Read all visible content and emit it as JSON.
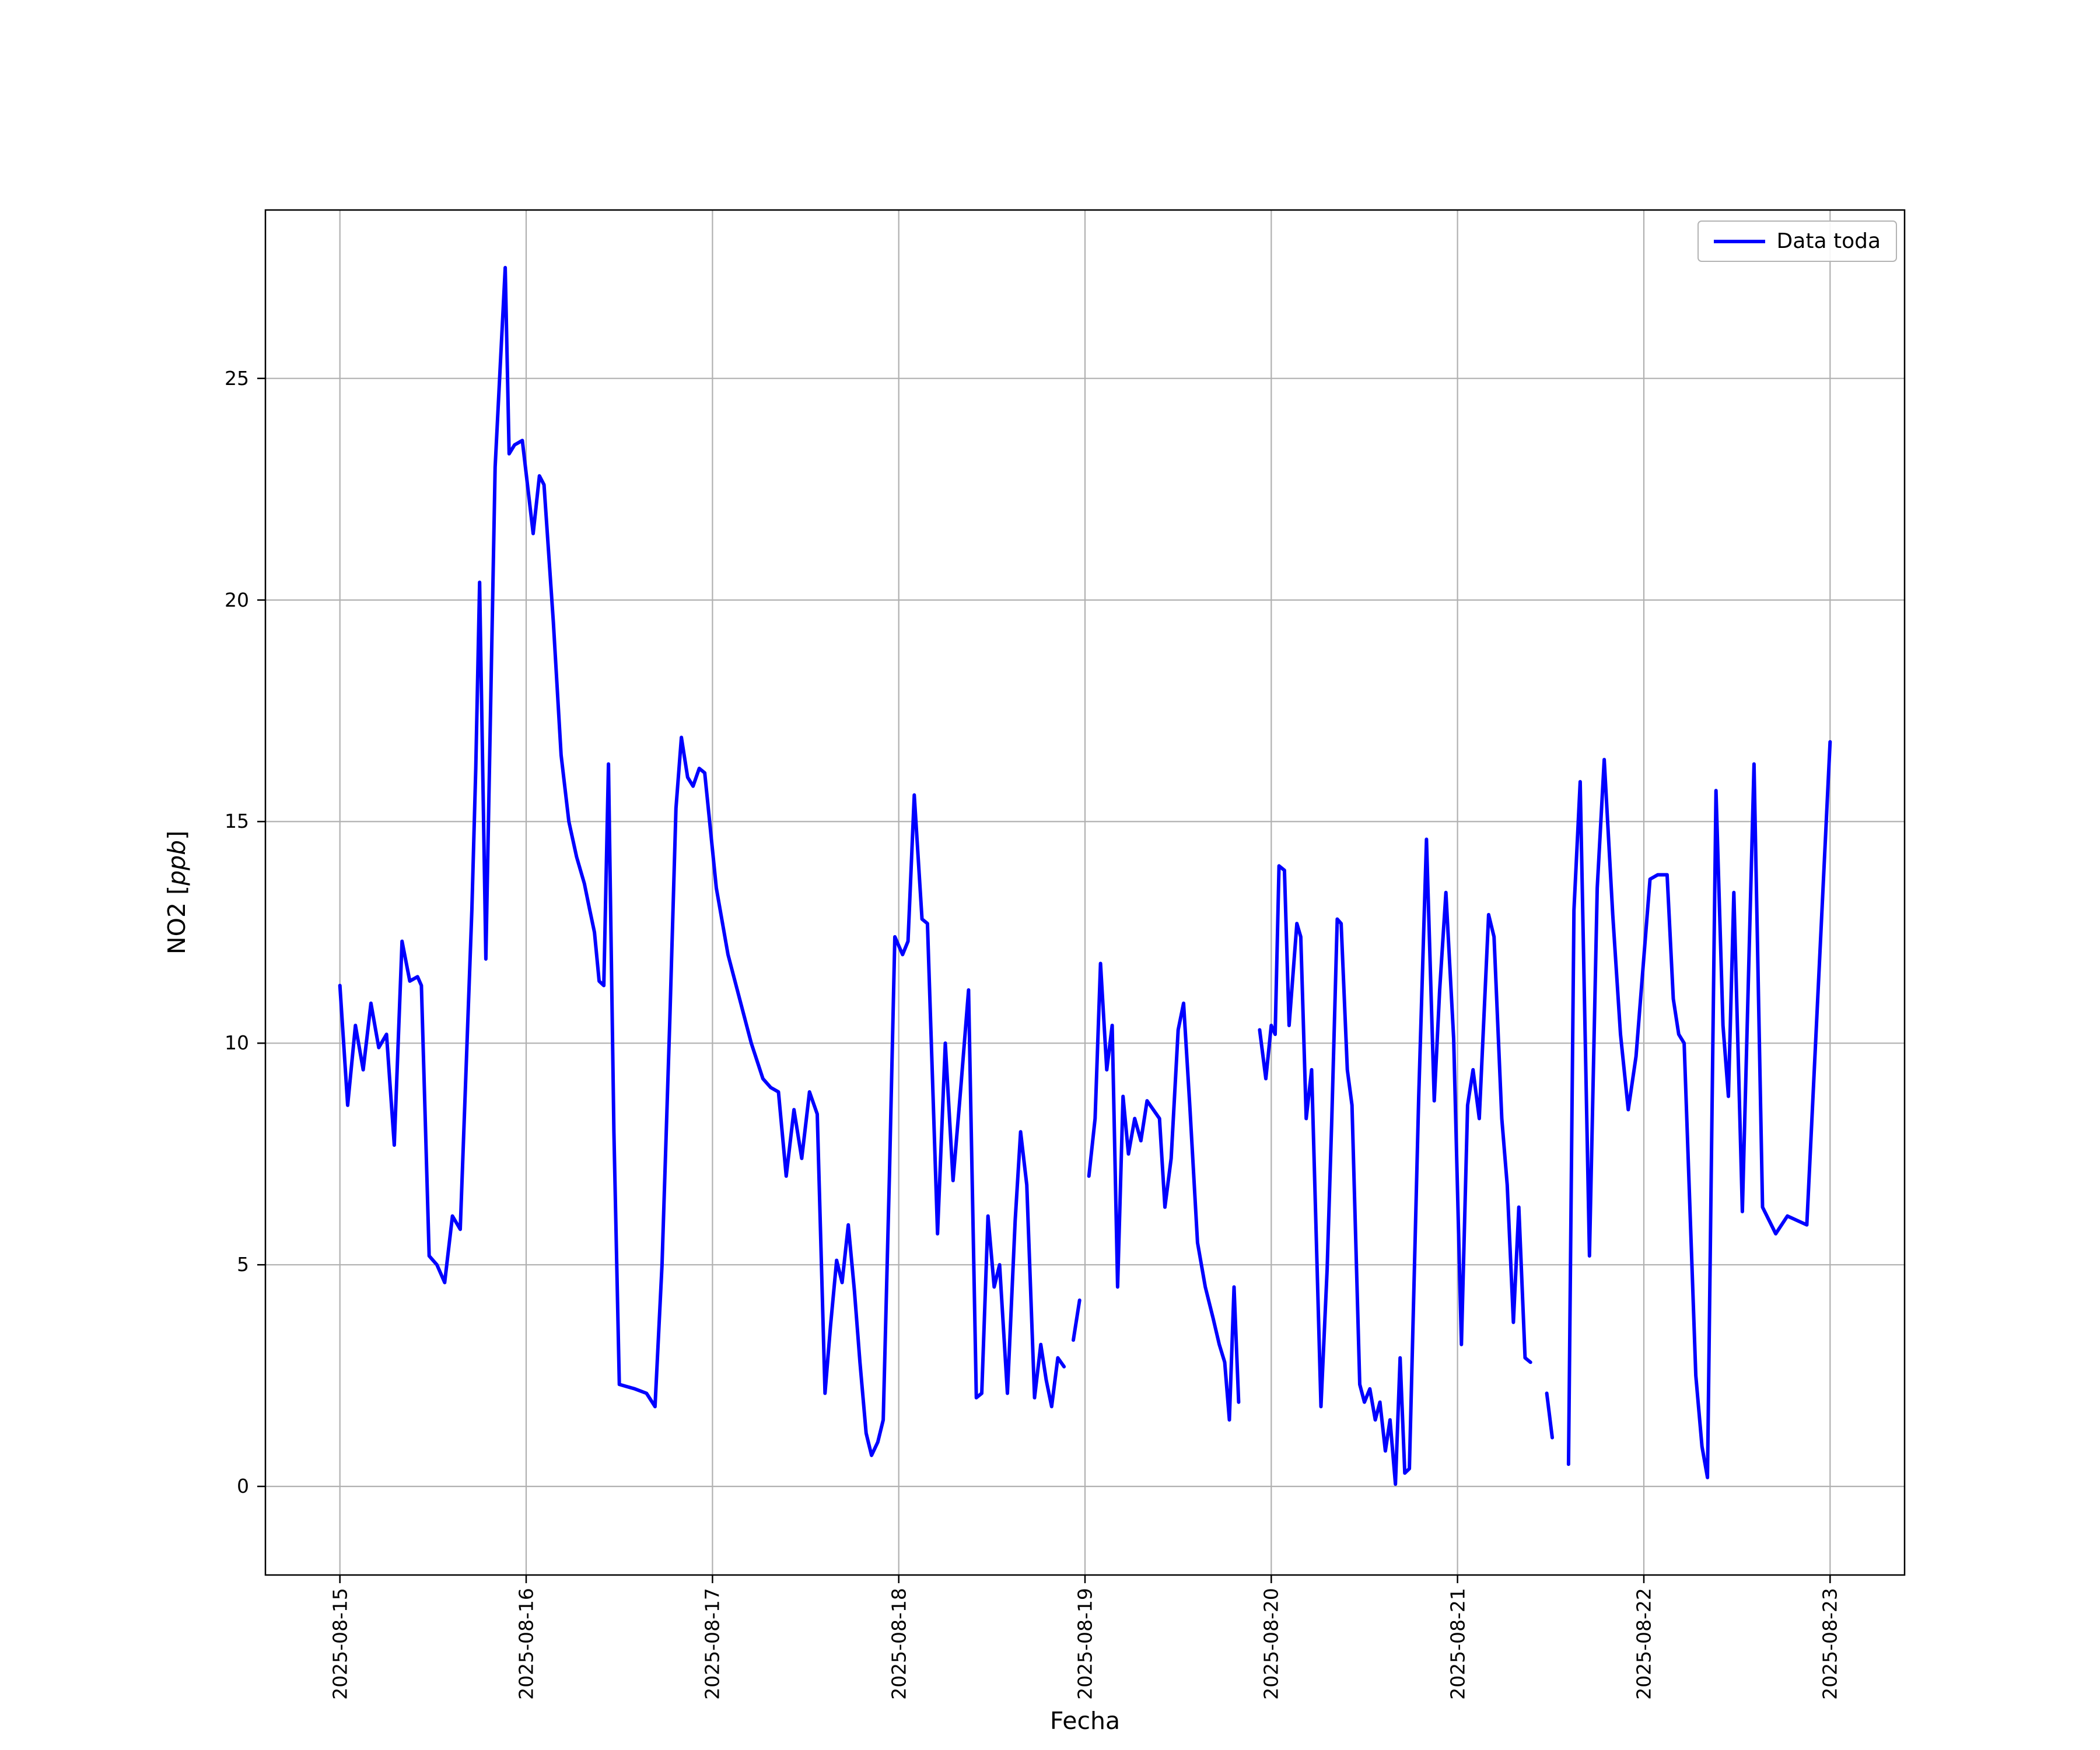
{
  "chart_data": {
    "type": "line",
    "xlabel": "Fecha",
    "ylabel": "NO2 [ppb]",
    "ylabel_parts": {
      "prefix": "NO2 [",
      "italic": "ppb",
      "suffix": "]"
    },
    "x_unit": "hours since first x tick (2025-08-15 00:00)",
    "xlim": [
      -9.6,
      201.6
    ],
    "ylim": [
      -2.0,
      28.8
    ],
    "grid": true,
    "yticks": [
      0,
      5,
      10,
      15,
      20,
      25
    ],
    "xtick_hours": [
      0,
      24,
      48,
      72,
      96,
      120,
      144,
      168,
      192
    ],
    "xtick_labels": [
      "2025-08-15",
      "2025-08-16",
      "2025-08-17",
      "2025-08-18",
      "2025-08-19",
      "2025-08-20",
      "2025-08-21",
      "2025-08-22",
      "2025-08-23"
    ],
    "legend": {
      "position": "upper right",
      "entries": [
        "Data toda"
      ]
    },
    "line_color": "#0000ff",
    "series": [
      {
        "name": "Data toda",
        "color": "#0000ff",
        "segments": [
          [
            [
              0,
              11.3
            ],
            [
              1,
              8.6
            ],
            [
              2,
              10.4
            ],
            [
              3,
              9.4
            ],
            [
              4,
              10.9
            ],
            [
              5,
              9.9
            ],
            [
              6,
              10.2
            ],
            [
              7,
              7.7
            ],
            [
              8,
              12.3
            ],
            [
              9,
              11.4
            ],
            [
              10,
              11.5
            ],
            [
              10.5,
              11.3
            ],
            [
              11.5,
              5.2
            ],
            [
              12.5,
              5.0
            ],
            [
              13.5,
              4.6
            ],
            [
              14.5,
              6.1
            ],
            [
              15.5,
              5.8
            ],
            [
              17,
              13.0
            ],
            [
              17.5,
              16.2
            ],
            [
              18,
              20.4
            ],
            [
              18.8,
              11.9
            ],
            [
              20,
              23.0
            ],
            [
              21.3,
              27.5
            ],
            [
              21.8,
              23.3
            ],
            [
              22.5,
              23.5
            ],
            [
              23.5,
              23.6
            ],
            [
              24.9,
              21.5
            ],
            [
              25.7,
              22.8
            ],
            [
              26.3,
              22.6
            ],
            [
              27.5,
              19.5
            ],
            [
              28.5,
              16.5
            ],
            [
              29.5,
              15.0
            ],
            [
              30.5,
              14.2
            ],
            [
              31.5,
              13.6
            ],
            [
              32.2,
              13.0
            ],
            [
              32.8,
              12.5
            ],
            [
              33.4,
              11.4
            ],
            [
              34,
              11.3
            ],
            [
              34.6,
              16.3
            ],
            [
              35.3,
              8.0
            ],
            [
              36,
              2.3
            ],
            [
              37,
              2.25
            ],
            [
              38,
              2.2
            ],
            [
              39.5,
              2.1
            ],
            [
              40.6,
              1.8
            ],
            [
              41.5,
              5.0
            ],
            [
              42.5,
              10.5
            ],
            [
              43.3,
              15.3
            ],
            [
              44,
              16.9
            ],
            [
              44.8,
              16.0
            ],
            [
              45.5,
              15.8
            ],
            [
              46.3,
              16.2
            ],
            [
              47,
              16.1
            ],
            [
              48.5,
              13.5
            ],
            [
              50,
              12.0
            ],
            [
              51.5,
              11.0
            ],
            [
              53,
              10.0
            ],
            [
              54.5,
              9.2
            ],
            [
              55.5,
              9.0
            ],
            [
              56.5,
              8.9
            ],
            [
              57.5,
              7.0
            ],
            [
              58.5,
              8.5
            ],
            [
              59.5,
              7.4
            ],
            [
              60.5,
              8.9
            ],
            [
              61.5,
              8.4
            ],
            [
              62.5,
              2.1
            ],
            [
              63.2,
              3.6
            ],
            [
              64,
              5.1
            ],
            [
              64.7,
              4.6
            ],
            [
              65.5,
              5.9
            ],
            [
              66.3,
              4.4
            ],
            [
              67,
              2.8
            ],
            [
              67.8,
              1.2
            ],
            [
              68.5,
              0.7
            ],
            [
              69.3,
              1.0
            ],
            [
              70,
              1.5
            ],
            [
              70.8,
              7.0
            ],
            [
              71.5,
              12.4
            ],
            [
              72.5,
              12.0
            ],
            [
              73.2,
              12.3
            ],
            [
              74,
              15.6
            ],
            [
              75,
              12.8
            ],
            [
              75.7,
              12.7
            ],
            [
              77,
              5.7
            ],
            [
              78,
              10.0
            ],
            [
              79,
              6.9
            ],
            [
              80,
              9.0
            ],
            [
              81,
              11.2
            ],
            [
              82,
              2.0
            ],
            [
              82.7,
              2.1
            ],
            [
              83.5,
              6.1
            ],
            [
              84.3,
              4.5
            ],
            [
              85,
              5.0
            ],
            [
              86,
              2.1
            ],
            [
              87,
              6.0
            ],
            [
              87.7,
              8.0
            ],
            [
              88.5,
              6.8
            ],
            [
              89.5,
              2.0
            ],
            [
              90.3,
              3.2
            ],
            [
              91,
              2.4
            ],
            [
              91.7,
              1.8
            ],
            [
              92.5,
              2.9
            ],
            [
              93.3,
              2.7
            ]
          ],
          [
            [
              94.5,
              3.3
            ],
            [
              95.3,
              4.2
            ]
          ],
          [
            [
              96.5,
              7.0
            ],
            [
              97.3,
              8.3
            ],
            [
              98,
              11.8
            ],
            [
              98.8,
              9.4
            ],
            [
              99.5,
              10.4
            ],
            [
              100.2,
              4.5
            ],
            [
              100.9,
              8.8
            ],
            [
              101.6,
              7.5
            ],
            [
              102.4,
              8.3
            ],
            [
              103.2,
              7.8
            ],
            [
              104,
              8.7
            ],
            [
              104.8,
              8.5
            ],
            [
              105.6,
              8.3
            ],
            [
              106.3,
              6.3
            ],
            [
              107.1,
              7.4
            ],
            [
              108,
              10.3
            ],
            [
              108.7,
              10.9
            ],
            [
              109.5,
              8.6
            ],
            [
              110.5,
              5.5
            ],
            [
              111.5,
              4.5
            ],
            [
              112.5,
              3.8
            ],
            [
              113.3,
              3.2
            ],
            [
              114,
              2.8
            ],
            [
              114.6,
              1.5
            ],
            [
              115.2,
              4.5
            ],
            [
              115.8,
              1.9
            ]
          ],
          [
            [
              118.5,
              10.3
            ],
            [
              119.3,
              9.2
            ],
            [
              120,
              10.4
            ],
            [
              120.5,
              10.2
            ],
            [
              121,
              14.0
            ],
            [
              121.7,
              13.9
            ],
            [
              122.3,
              10.4
            ],
            [
              123.3,
              12.7
            ],
            [
              123.8,
              12.4
            ],
            [
              124.5,
              8.3
            ],
            [
              125.2,
              9.4
            ],
            [
              125.8,
              5.6
            ],
            [
              126.4,
              1.8
            ],
            [
              127.2,
              4.9
            ],
            [
              127.8,
              8.3
            ],
            [
              128.5,
              12.8
            ],
            [
              129,
              12.7
            ],
            [
              129.8,
              9.4
            ],
            [
              130.4,
              8.6
            ],
            [
              131.4,
              2.3
            ],
            [
              132,
              1.9
            ],
            [
              132.7,
              2.2
            ],
            [
              133.4,
              1.5
            ],
            [
              134,
              1.9
            ],
            [
              134.7,
              0.8
            ],
            [
              135.3,
              1.5
            ],
            [
              136,
              0.05
            ],
            [
              136.6,
              2.9
            ],
            [
              137.2,
              0.3
            ],
            [
              137.8,
              0.4
            ],
            [
              139,
              8.8
            ],
            [
              140,
              14.6
            ],
            [
              141,
              8.7
            ],
            [
              141.7,
              11.2
            ],
            [
              142.5,
              13.4
            ],
            [
              143.5,
              10.1
            ],
            [
              144.5,
              3.2
            ],
            [
              145.3,
              8.6
            ],
            [
              146,
              9.4
            ],
            [
              146.8,
              8.3
            ],
            [
              148,
              12.9
            ],
            [
              148.7,
              12.4
            ],
            [
              149.7,
              8.3
            ],
            [
              150.4,
              6.8
            ],
            [
              151.2,
              3.7
            ],
            [
              151.9,
              6.3
            ],
            [
              152.7,
              2.9
            ],
            [
              153.4,
              2.8
            ]
          ],
          [
            [
              155.5,
              2.1
            ],
            [
              156.2,
              1.1
            ]
          ],
          [
            [
              158.3,
              0.5
            ],
            [
              159,
              13.0
            ],
            [
              159.8,
              15.9
            ],
            [
              161,
              5.2
            ],
            [
              162,
              13.5
            ],
            [
              162.9,
              16.4
            ],
            [
              164,
              12.9
            ],
            [
              165,
              10.2
            ],
            [
              166,
              8.5
            ],
            [
              167,
              9.7
            ],
            [
              168.8,
              13.7
            ],
            [
              169.8,
              13.8
            ],
            [
              171,
              13.8
            ],
            [
              171.8,
              11.0
            ],
            [
              172.5,
              10.2
            ],
            [
              173.2,
              10.0
            ],
            [
              174.7,
              2.5
            ],
            [
              175.5,
              0.9
            ],
            [
              176.2,
              0.2
            ],
            [
              177.3,
              15.7
            ],
            [
              178.2,
              10.4
            ],
            [
              178.9,
              8.8
            ],
            [
              179.6,
              13.4
            ],
            [
              180.7,
              6.2
            ],
            [
              182.2,
              16.3
            ],
            [
              183.3,
              6.3
            ],
            [
              185,
              5.7
            ],
            [
              186.5,
              6.1
            ],
            [
              189,
              5.9
            ],
            [
              192,
              16.8
            ]
          ]
        ]
      }
    ]
  }
}
